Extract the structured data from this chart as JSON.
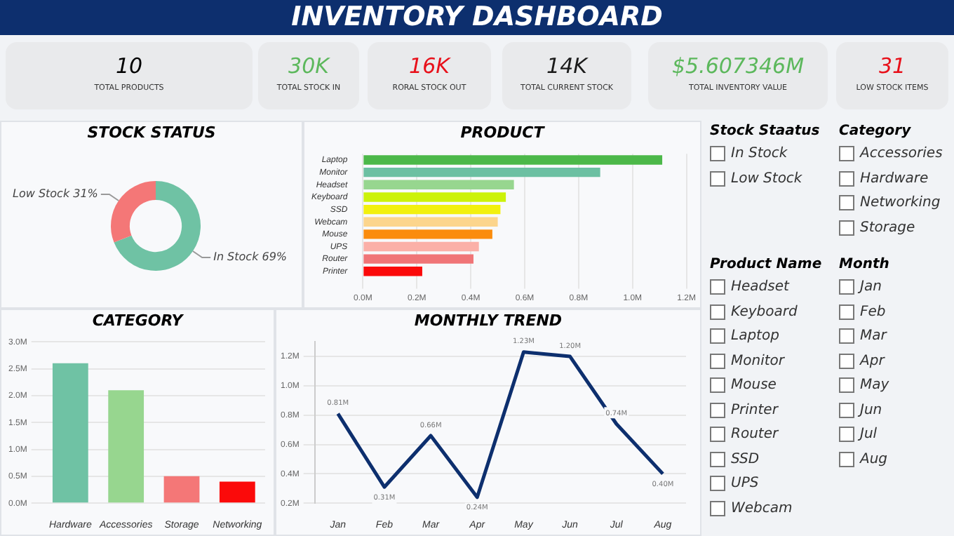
{
  "chart_data": [
    {
      "type": "other",
      "title": "INVENTORY DASHBOARD",
      "annotations": [
        "10",
        "TOTAL PRODUCTS",
        "30K",
        "TOTAL STOCK IN",
        "16K",
        "RORAL STOCK OUT",
        "14K",
        "TOTAL CURRENT STOCK",
        "$5.607346M",
        "TOTAL INVENTORY VALUE",
        "31",
        "LOW STOCK ITEMS"
      ],
      "colors": [
        "#000000",
        "#5cb85c",
        "#e8101a",
        "#1a1a1a",
        "#5cb85c",
        "#e8101a"
      ]
    },
    {
      "type": "donut",
      "title": "STOCK STATUS",
      "categories": [
        "In Stock",
        "Low Stock"
      ],
      "values": [
        69,
        31
      ],
      "colors": [
        "#6fc2a4",
        "#f47777"
      ],
      "value_labels": [
        "69%",
        "31%"
      ]
    },
    {
      "type": "bar",
      "title": "PRODUCT",
      "orientation": "horizontal",
      "categories": [
        "Laptop",
        "Monitor",
        "Headset",
        "Keyboard",
        "SSD",
        "Webcam",
        "Mouse",
        "UPS",
        "Router",
        "Printer"
      ],
      "values": [
        1.11,
        0.88,
        0.56,
        0.53,
        0.51,
        0.5,
        0.48,
        0.43,
        0.41,
        0.22
      ],
      "colors": [
        "#4cb849",
        "#6cc0a2",
        "#97d68f",
        "#ccf20a",
        "#f2f00e",
        "#fcd58c",
        "#fb8c0c",
        "#fbb0a8",
        "#f07577",
        "#fb0a0a"
      ],
      "xlim": [
        0,
        1.2
      ],
      "xticks": [
        {
          "value": 0,
          "label": "0.0M"
        },
        {
          "value": 0.2,
          "label": "0.2M"
        },
        {
          "value": 0.4,
          "label": "0.4M"
        },
        {
          "value": 0.6,
          "label": "0.6M"
        },
        {
          "value": 0.8,
          "label": "0.8M"
        },
        {
          "value": 1,
          "label": "1.0M"
        },
        {
          "value": 1.2,
          "label": "1.2M"
        }
      ],
      "grid": "x"
    },
    {
      "type": "other",
      "title": "Stock Staatus",
      "annotations": [
        "In Stock",
        "Low Stock"
      ]
    },
    {
      "type": "other",
      "title": "Category",
      "annotations": [
        "Accessories",
        "Hardware",
        "Networking",
        "Storage"
      ]
    },
    {
      "type": "bar",
      "title": "CATEGORY",
      "categories": [
        "Hardware",
        "Accessories",
        "Storage",
        "Networking"
      ],
      "values": [
        2.6,
        2.1,
        0.5,
        0.4
      ],
      "colors": [
        "#6fc2a4",
        "#97d68f",
        "#f47777",
        "#fb0a0a"
      ],
      "ylim": [
        0,
        3
      ],
      "yticks": [
        {
          "value": 0,
          "label": "0.0M"
        },
        {
          "value": 0.5,
          "label": "0.5M"
        },
        {
          "value": 1,
          "label": "1.0M"
        },
        {
          "value": 1.5,
          "label": "1.5M"
        },
        {
          "value": 2,
          "label": "2.0M"
        },
        {
          "value": 2.5,
          "label": "2.5M"
        },
        {
          "value": 3,
          "label": "3.0M"
        }
      ],
      "grid": "y"
    },
    {
      "type": "line",
      "title": "MONTHLY TREND",
      "categories": [
        "Jan",
        "Feb",
        "Mar",
        "Apr",
        "May",
        "Jun",
        "Jul",
        "Aug"
      ],
      "values": [
        0.81,
        0.31,
        0.66,
        0.24,
        1.23,
        1.2,
        0.74,
        0.4
      ],
      "value_labels": [
        "0.81M",
        "0.31M",
        "0.66M",
        "0.24M",
        "1.23M",
        "1.20M",
        "0.74M",
        "0.40M"
      ],
      "color": "#0d2f6e",
      "ylim": [
        0.2,
        1.3
      ],
      "yticks": [
        {
          "value": 0.2,
          "label": "0.2M"
        },
        {
          "value": 0.4,
          "label": "0.4M"
        },
        {
          "value": 0.6,
          "label": "0.6M"
        },
        {
          "value": 0.8,
          "label": "0.8M"
        },
        {
          "value": 1,
          "label": "1.0M"
        },
        {
          "value": 1.2,
          "label": "1.2M"
        }
      ],
      "grid": "y"
    },
    {
      "type": "other",
      "title": "Product Name",
      "annotations": [
        "Headset",
        "Keyboard",
        "Laptop",
        "Monitor",
        "Mouse",
        "Printer",
        "Router",
        "SSD",
        "UPS",
        "Webcam"
      ]
    },
    {
      "type": "other",
      "title": "Month",
      "annotations": [
        "Jan",
        "Feb",
        "Mar",
        "Apr",
        "May",
        "Jun",
        "Jul",
        "Aug"
      ]
    }
  ]
}
